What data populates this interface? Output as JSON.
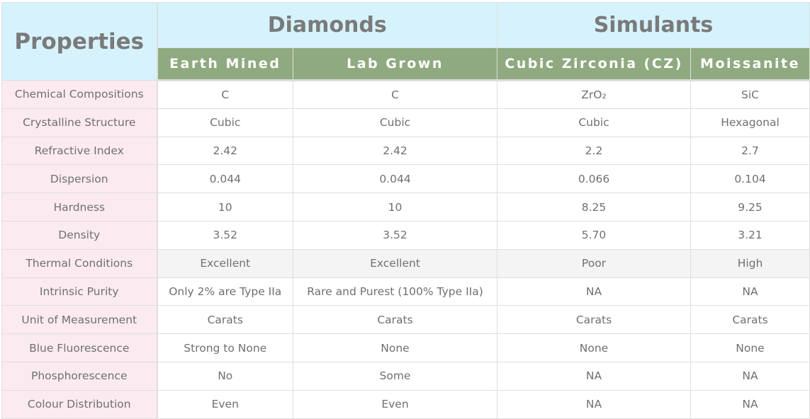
{
  "header": {
    "properties": "Properties",
    "groups": [
      "Diamonds",
      "Simulants"
    ],
    "columns": [
      "Earth Mined",
      "Lab Grown",
      "Cubic Zirconia (CZ)",
      "Moissanite"
    ]
  },
  "colors": {
    "header_bg": "#d6f3fd",
    "subheader_bg": "#8faa80",
    "label_bg": "#fbebf0"
  },
  "rows": [
    {
      "label": "Chemical Compositions",
      "values": [
        "C",
        "C",
        "ZrO₂",
        "SiC"
      ]
    },
    {
      "label": "Crystalline Structure",
      "values": [
        "Cubic",
        "Cubic",
        "Cubic",
        "Hexagonal"
      ]
    },
    {
      "label": "Refractive Index",
      "values": [
        "2.42",
        "2.42",
        "2.2",
        "2.7"
      ]
    },
    {
      "label": "Dispersion",
      "values": [
        "0.044",
        "0.044",
        "0.066",
        "0.104"
      ]
    },
    {
      "label": "Hardness",
      "values": [
        "10",
        "10",
        "8.25",
        "9.25"
      ]
    },
    {
      "label": "Density",
      "values": [
        "3.52",
        "3.52",
        "5.70",
        "3.21"
      ]
    },
    {
      "label": "Thermal Conditions",
      "values": [
        "Excellent",
        "Excellent",
        "Poor",
        "High"
      ]
    },
    {
      "label": "Intrinsic Purity",
      "values": [
        "Only 2% are Type IIa",
        "Rare and Purest (100% Type IIa)",
        "NA",
        "NA"
      ]
    },
    {
      "label": "Unit of Measurement",
      "values": [
        "Carats",
        "Carats",
        "Carats",
        "Carats"
      ]
    },
    {
      "label": "Blue Fluorescence",
      "values": [
        "Strong to None",
        "None",
        "None",
        "None"
      ]
    },
    {
      "label": "Phosphorescence",
      "values": [
        "No",
        "Some",
        "NA",
        "NA"
      ]
    },
    {
      "label": "Colour Distribution",
      "values": [
        "Even",
        "Even",
        "NA",
        "NA"
      ]
    }
  ]
}
